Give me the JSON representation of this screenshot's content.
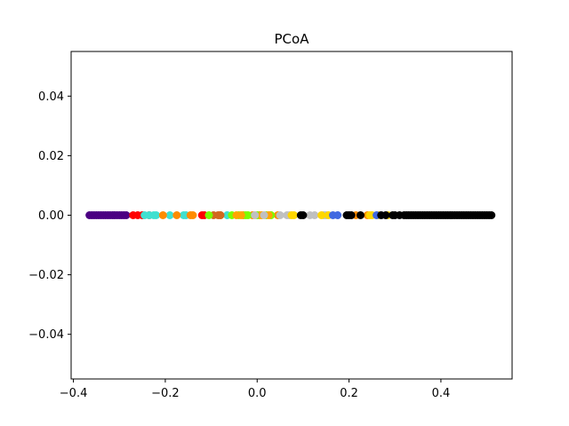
{
  "chart_data": {
    "type": "scatter",
    "title": "PCoA",
    "xlabel": "",
    "ylabel": "",
    "xlim": [
      -0.405,
      0.555
    ],
    "ylim": [
      -0.055,
      0.055
    ],
    "grid": false,
    "legend": "none",
    "xticks": [
      {
        "value": -0.4,
        "label": "−0.4"
      },
      {
        "value": -0.2,
        "label": "−0.2"
      },
      {
        "value": 0.0,
        "label": "0.0"
      },
      {
        "value": 0.2,
        "label": "0.2"
      },
      {
        "value": 0.4,
        "label": "0.4"
      }
    ],
    "yticks": [
      {
        "value": 0.04,
        "label": "0.04"
      },
      {
        "value": 0.02,
        "label": "0.02"
      },
      {
        "value": 0.0,
        "label": "0.00"
      },
      {
        "value": -0.02,
        "label": "−0.02"
      },
      {
        "value": -0.04,
        "label": "−0.04"
      }
    ],
    "groups": [
      {
        "color": "#4b0082",
        "x": [
          -0.365,
          -0.36,
          -0.355,
          -0.35,
          -0.345,
          -0.34,
          -0.335,
          -0.33,
          -0.325,
          -0.32,
          -0.315,
          -0.31,
          -0.305,
          -0.3,
          -0.295,
          -0.29,
          -0.285
        ]
      },
      {
        "color": "#ff0000",
        "x": [
          -0.27,
          -0.26,
          -0.25,
          -0.235,
          -0.12,
          -0.115
        ]
      },
      {
        "color": "#40e0d0",
        "x": [
          -0.245,
          -0.235,
          -0.225,
          -0.22,
          -0.19,
          -0.16,
          -0.155,
          -0.065
        ]
      },
      {
        "color": "#ff8c00",
        "x": [
          -0.205,
          -0.175,
          -0.145,
          -0.14,
          -0.03,
          -0.01,
          0.005,
          0.03,
          0.045,
          0.215,
          0.24
        ]
      },
      {
        "color": "#d2691e",
        "x": [
          -0.095,
          -0.085,
          -0.08,
          -0.08
        ]
      },
      {
        "color": "#7cfc00",
        "x": [
          -0.105,
          -0.055,
          -0.04,
          -0.025,
          -0.02,
          0.0,
          0.02,
          0.03
        ]
      },
      {
        "color": "#ffa500",
        "x": [
          -0.045,
          -0.035,
          0.01,
          0.025
        ]
      },
      {
        "color": "#c0c0c0",
        "x": [
          -0.005,
          0.015,
          0.05,
          0.065,
          0.07,
          0.115,
          0.125,
          0.145,
          0.15
        ]
      },
      {
        "color": "#ffd700",
        "x": [
          0.075,
          0.08,
          0.14,
          0.155,
          0.245,
          0.25,
          0.265,
          0.285
        ]
      },
      {
        "color": "#4169e1",
        "x": [
          0.165,
          0.175,
          0.26
        ]
      },
      {
        "color": "#000000",
        "x": [
          0.095,
          0.1,
          0.195,
          0.2,
          0.205,
          0.225,
          0.27,
          0.28,
          0.295,
          0.3,
          0.31,
          0.32,
          0.325,
          0.33,
          0.335,
          0.34,
          0.345,
          0.35,
          0.355,
          0.36,
          0.365,
          0.37,
          0.375,
          0.38,
          0.385,
          0.39,
          0.395,
          0.4,
          0.405,
          0.41,
          0.415,
          0.42,
          0.425,
          0.43,
          0.435,
          0.44,
          0.445,
          0.45,
          0.455,
          0.46,
          0.465,
          0.47,
          0.475,
          0.48,
          0.485,
          0.49,
          0.495,
          0.5,
          0.505,
          0.51
        ]
      }
    ]
  }
}
